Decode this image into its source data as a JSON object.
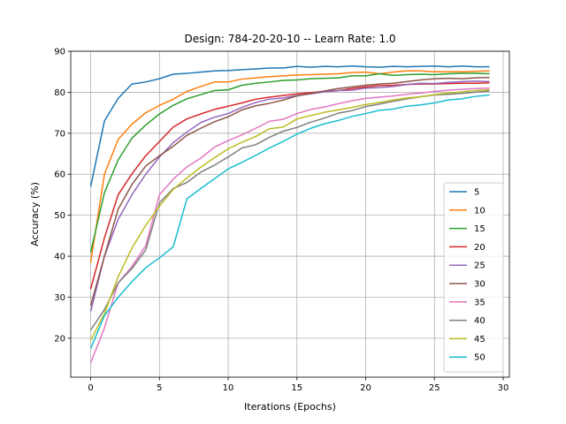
{
  "chart_data": {
    "type": "line",
    "title": "Design: 784-20-20-10 -- Learn Rate: 1.0",
    "xlabel": "Iterations (Epochs)",
    "ylabel": "Accuracy (%)",
    "xlim": [
      -1.45,
      30.45
    ],
    "ylim": [
      10.5,
      90
    ],
    "xticks": [
      0,
      5,
      10,
      15,
      20,
      25,
      30
    ],
    "yticks": [
      20,
      30,
      40,
      50,
      60,
      70,
      80,
      90
    ],
    "grid": true,
    "legend_position": "lower-right",
    "x": [
      0,
      1,
      2,
      3,
      4,
      5,
      6,
      7,
      8,
      9,
      10,
      11,
      12,
      13,
      14,
      15,
      16,
      17,
      18,
      19,
      20,
      21,
      22,
      23,
      24,
      25,
      26,
      27,
      28,
      29
    ],
    "series": [
      {
        "name": "5",
        "color": "#1f77b4",
        "values": [
          57,
          73,
          78.5,
          82,
          82.5,
          83.3,
          84.4,
          84.6,
          84.9,
          85.2,
          85.3,
          85.5,
          85.7,
          85.9,
          85.9,
          86.3,
          86.1,
          86.3,
          86.2,
          86.4,
          86.2,
          86.1,
          86.3,
          86.2,
          86.3,
          86.4,
          86.2,
          86.4,
          86.2,
          86.2
        ]
      },
      {
        "name": "10",
        "color": "#ff7f0e",
        "values": [
          38.5,
          60,
          68.5,
          72.2,
          75,
          76.8,
          78.3,
          80.2,
          81.4,
          82.5,
          82.5,
          83.2,
          83.5,
          83.8,
          84,
          84.2,
          84.3,
          84.4,
          84.5,
          84.8,
          84.9,
          84.5,
          84.9,
          85.2,
          85.2,
          85,
          85,
          85,
          85.1,
          85.2
        ]
      },
      {
        "name": "15",
        "color": "#2ca02c",
        "values": [
          41,
          55.5,
          63.5,
          68.8,
          72,
          74.7,
          76.8,
          78.4,
          79.4,
          80.4,
          80.6,
          81.7,
          82.2,
          82.5,
          82.9,
          83,
          83.3,
          83.4,
          83.5,
          84,
          84,
          84.5,
          84.1,
          84.3,
          84.4,
          84.3,
          84.5,
          84.6,
          84.6,
          84.5
        ]
      },
      {
        "name": "20",
        "color": "#d62728",
        "values": [
          32,
          44.5,
          55,
          60.1,
          64.5,
          68,
          71.5,
          73.5,
          74.7,
          75.8,
          76.6,
          77.4,
          78.3,
          78.8,
          79.2,
          79.6,
          79.9,
          80.2,
          80.4,
          80.9,
          81.3,
          81.6,
          81.7,
          81.9,
          82,
          82,
          82.1,
          82.2,
          82.2,
          82.3
        ]
      },
      {
        "name": "25",
        "color": "#9467bd",
        "values": [
          26.5,
          40,
          49,
          55,
          60,
          64.2,
          67.7,
          70.3,
          72.6,
          73.9,
          74.8,
          76.3,
          77.5,
          78.3,
          78.6,
          79.2,
          79.6,
          80.1,
          80.4,
          80.5,
          81,
          81.1,
          81.4,
          81.9,
          82.2,
          82.1,
          82.4,
          82.6,
          82.7,
          82.6
        ]
      },
      {
        "name": "30",
        "color": "#8c564b",
        "values": [
          28,
          40,
          51.5,
          57.5,
          62,
          64.5,
          66.8,
          69.5,
          71.2,
          72.8,
          74,
          75.7,
          76.7,
          77.3,
          78.1,
          79.1,
          79.7,
          80.3,
          80.9,
          81.3,
          81.7,
          82,
          82.2,
          82.6,
          83,
          83.3,
          83.4,
          83.3,
          83.5,
          83.6
        ]
      },
      {
        "name": "35",
        "color": "#e377c2",
        "values": [
          14,
          22.5,
          33.5,
          37.5,
          42.5,
          55,
          58.8,
          61.8,
          63.9,
          66.6,
          68.2,
          69.6,
          71.2,
          72.9,
          73.4,
          74.8,
          75.8,
          76.4,
          77.2,
          77.9,
          78.5,
          78.8,
          79.1,
          79.5,
          79.8,
          80.2,
          80.5,
          80.7,
          80.9,
          81
        ]
      },
      {
        "name": "40",
        "color": "#7f7f7f",
        "values": [
          22,
          27,
          33.5,
          37,
          41.5,
          53,
          56.5,
          58,
          60.5,
          62.2,
          64.2,
          66.4,
          67.2,
          69,
          70.5,
          71.4,
          72.7,
          73.7,
          74.9,
          75.5,
          76.5,
          77.1,
          77.8,
          78.4,
          78.9,
          79.3,
          79.5,
          79.7,
          80,
          80.3
        ]
      },
      {
        "name": "45",
        "color": "#bcbd22",
        "values": [
          19.5,
          26,
          35,
          42,
          47.5,
          52.2,
          56.3,
          59.1,
          61.7,
          64,
          66.2,
          67.8,
          69.2,
          71.1,
          71.5,
          73.5,
          74.3,
          75.1,
          75.7,
          76.3,
          77,
          77.5,
          78.1,
          78.6,
          78.9,
          79.4,
          79.8,
          80.1,
          80.4,
          80.6
        ]
      },
      {
        "name": "50",
        "color": "#17becf",
        "values": [
          17.5,
          25.5,
          30,
          33.8,
          37.2,
          39.6,
          42.3,
          54,
          56.5,
          58.9,
          61.3,
          62.9,
          64.6,
          66.4,
          68,
          69.8,
          71.2,
          72.3,
          73.1,
          74.1,
          74.8,
          75.6,
          75.9,
          76.6,
          76.9,
          77.4,
          78.1,
          78.4,
          79,
          79.3
        ]
      }
    ]
  }
}
